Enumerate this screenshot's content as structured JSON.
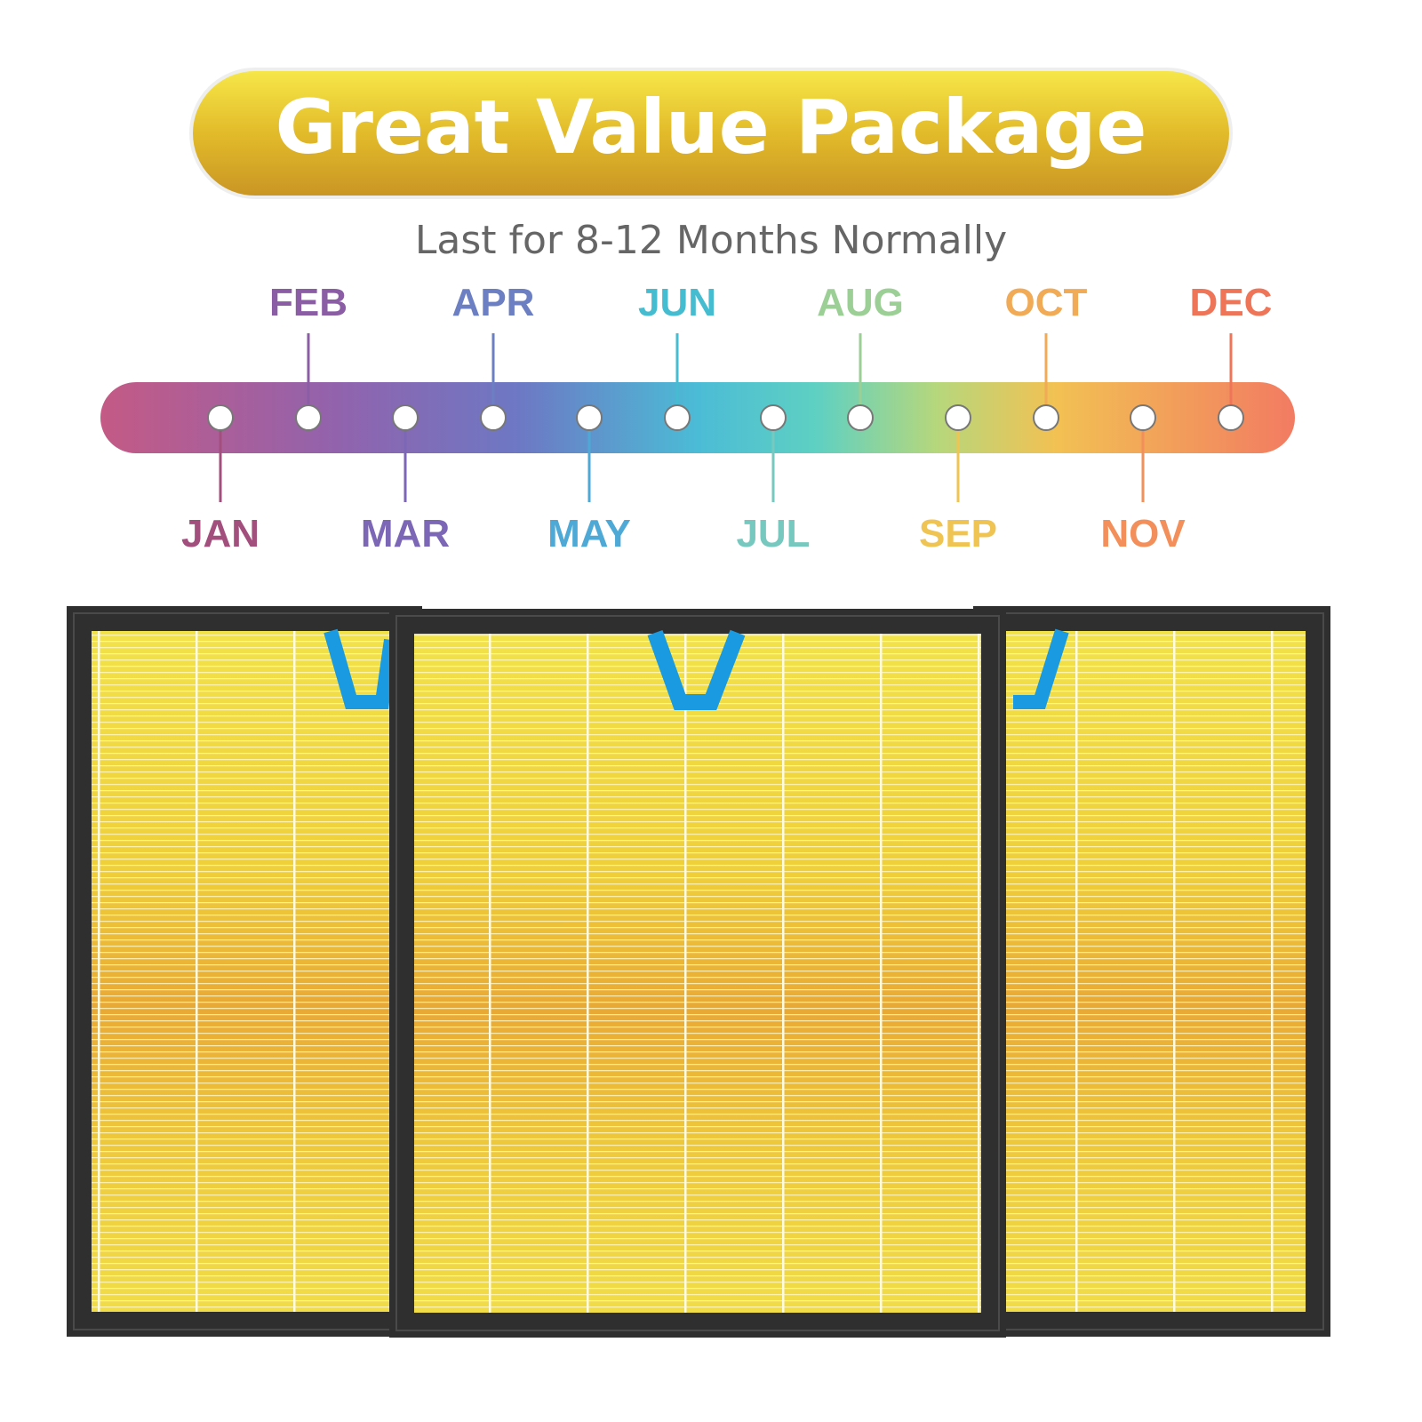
{
  "banner": {
    "title": "Great Value Package"
  },
  "subtitle": "Last for 8-12 Months Normally",
  "timeline": {
    "months": [
      "JAN",
      "FEB",
      "MAR",
      "APR",
      "MAY",
      "JUN",
      "JUL",
      "AUG",
      "SEP",
      "OCT",
      "NOV",
      "DEC"
    ]
  }
}
